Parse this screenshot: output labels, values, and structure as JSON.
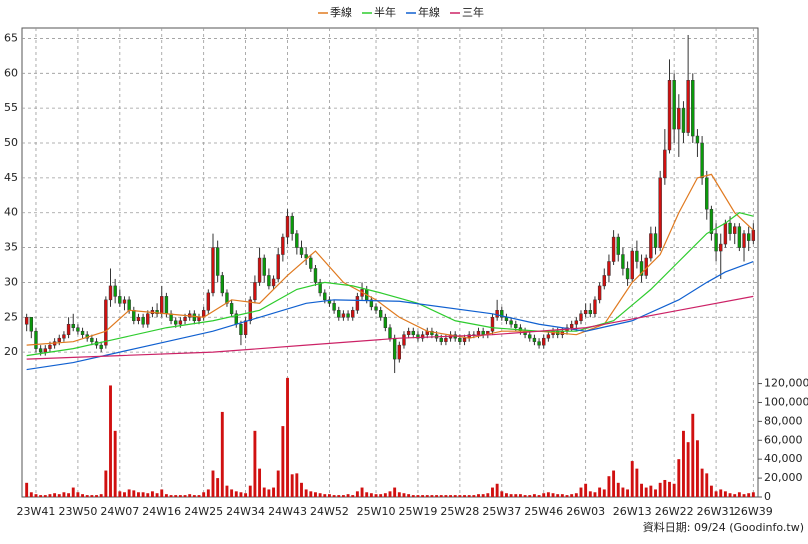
{
  "chart_data": {
    "type": "candlestick",
    "legend": "top",
    "up_color": "#d01010",
    "down_color": "#0a9a0a",
    "volume_color": "#d01010",
    "xlim": [
      -1,
      157
    ],
    "xticks": [
      {
        "value": 2,
        "label": "23W41"
      },
      {
        "value": 11,
        "label": "23W50"
      },
      {
        "value": 20,
        "label": "24W07"
      },
      {
        "value": 29,
        "label": "24W16"
      },
      {
        "value": 38,
        "label": "24W25"
      },
      {
        "value": 47,
        "label": "24W34"
      },
      {
        "value": 56,
        "label": "24W43"
      },
      {
        "value": 65,
        "label": "24W52"
      },
      {
        "value": 75,
        "label": "25W10"
      },
      {
        "value": 84,
        "label": "25W19"
      },
      {
        "value": 93,
        "label": "25W28"
      },
      {
        "value": 102,
        "label": "25W37"
      },
      {
        "value": 111,
        "label": "25W46"
      },
      {
        "value": 120,
        "label": "26W03"
      },
      {
        "value": 130,
        "label": "26W13"
      },
      {
        "value": 139,
        "label": "26W22"
      },
      {
        "value": 148,
        "label": "26W31"
      },
      {
        "value": 156,
        "label": "26W39"
      }
    ],
    "ylim": [
      16,
      66.5
    ],
    "yticks": [
      20,
      25,
      30,
      35,
      40,
      45,
      50,
      55,
      60,
      65
    ],
    "y2lim": [
      0,
      128000
    ],
    "y2ticks": [
      0,
      {
        "value": 20000,
        "label": "20,000"
      },
      {
        "value": 40000,
        "label": "40,000"
      },
      {
        "value": 60000,
        "label": "60,000"
      },
      {
        "value": 80000,
        "label": "80,000"
      },
      {
        "value": 100000,
        "label": "100,000"
      },
      {
        "value": 120000,
        "label": "120,000"
      }
    ],
    "grid": true,
    "footnote": "資料日期: 09/24 (Goodinfo.tw)",
    "candles": [
      [
        24,
        25.5,
        23,
        25
      ],
      [
        25,
        25,
        22,
        23
      ],
      [
        23,
        23.5,
        20,
        20.5
      ],
      [
        20.5,
        21,
        19.5,
        20
      ],
      [
        20,
        21,
        19.5,
        20.5
      ],
      [
        20.5,
        21.5,
        20,
        21
      ],
      [
        21,
        22,
        20.5,
        21.5
      ],
      [
        21.5,
        22.5,
        21,
        22
      ],
      [
        22,
        23,
        21.5,
        22.5
      ],
      [
        22.5,
        25,
        22,
        24
      ],
      [
        24,
        25.5,
        23,
        23.5
      ],
      [
        23.5,
        24,
        22.5,
        23
      ],
      [
        23,
        23.5,
        22,
        22.5
      ],
      [
        22.5,
        23,
        21.5,
        22
      ],
      [
        22,
        22.5,
        21,
        21.5
      ],
      [
        21.5,
        22,
        20.5,
        21
      ],
      [
        21,
        21.5,
        20,
        20.5
      ],
      [
        21,
        28,
        20.5,
        27.5
      ],
      [
        27.5,
        32,
        26.5,
        29.5
      ],
      [
        29.5,
        30.5,
        27,
        28
      ],
      [
        28,
        29,
        26.5,
        27
      ],
      [
        27,
        28,
        26,
        27.5
      ],
      [
        27.5,
        28,
        25.5,
        26
      ],
      [
        26,
        26.5,
        24,
        24.5
      ],
      [
        24.5,
        25.5,
        24,
        25
      ],
      [
        25,
        25.5,
        23.5,
        24
      ],
      [
        24,
        26,
        23.5,
        25.5
      ],
      [
        25.5,
        26.5,
        25,
        26
      ],
      [
        26,
        27,
        25,
        25.5
      ],
      [
        25.5,
        29.5,
        25,
        28
      ],
      [
        28,
        28.5,
        25,
        25.5
      ],
      [
        25.5,
        26,
        24,
        24.5
      ],
      [
        24.5,
        25,
        23.5,
        24
      ],
      [
        24,
        25,
        23.5,
        24.5
      ],
      [
        24.5,
        25.5,
        24,
        25
      ],
      [
        25,
        26,
        24.5,
        25.5
      ],
      [
        25.5,
        26,
        24,
        24.5
      ],
      [
        24.5,
        25.5,
        24,
        25
      ],
      [
        25,
        26.5,
        24.5,
        26
      ],
      [
        26,
        29,
        25.5,
        28.5
      ],
      [
        28.5,
        37,
        28,
        35
      ],
      [
        35,
        36,
        30,
        31
      ],
      [
        31,
        31.5,
        28,
        28.5
      ],
      [
        28.5,
        29,
        26.5,
        27
      ],
      [
        27,
        27.5,
        25,
        25.5
      ],
      [
        25.5,
        26,
        23.5,
        24
      ],
      [
        24,
        24.5,
        21,
        22.5
      ],
      [
        22.5,
        25,
        22,
        24.5
      ],
      [
        24.5,
        28,
        24,
        27.5
      ],
      [
        27.5,
        31,
        27,
        30
      ],
      [
        30,
        35,
        29.5,
        33.5
      ],
      [
        33.5,
        34,
        30,
        31
      ],
      [
        31,
        32,
        29,
        29.5
      ],
      [
        29.5,
        31,
        29,
        30.5
      ],
      [
        30.5,
        35,
        30,
        34
      ],
      [
        34,
        37,
        33,
        36.5
      ],
      [
        36.5,
        40.5,
        35.5,
        39.5
      ],
      [
        39.5,
        40,
        36,
        37
      ],
      [
        37,
        37.5,
        34,
        35
      ],
      [
        35,
        36,
        33.5,
        34
      ],
      [
        34,
        35,
        32.5,
        33.5
      ],
      [
        33.5,
        34,
        31.5,
        32
      ],
      [
        32,
        32.5,
        29.5,
        30
      ],
      [
        30,
        30.5,
        28,
        28.5
      ],
      [
        28.5,
        29,
        27,
        27.5
      ],
      [
        27.5,
        28,
        26.5,
        27
      ],
      [
        27,
        27.5,
        25.5,
        26
      ],
      [
        26,
        26.5,
        24.5,
        25
      ],
      [
        25,
        26,
        24.5,
        25.5
      ],
      [
        25.5,
        26,
        24.5,
        25
      ],
      [
        25,
        26.5,
        24.5,
        26
      ],
      [
        26,
        28.5,
        25.5,
        28
      ],
      [
        28,
        30,
        27.5,
        29
      ],
      [
        29,
        29.5,
        27,
        27.5
      ],
      [
        27.5,
        28,
        26,
        26.5
      ],
      [
        26.5,
        27,
        25.5,
        26
      ],
      [
        26,
        26.5,
        24.5,
        25
      ],
      [
        25,
        25.5,
        23,
        23.5
      ],
      [
        23.5,
        24,
        21.5,
        22
      ],
      [
        22,
        22.5,
        17,
        19
      ],
      [
        19,
        21.5,
        18.5,
        21
      ],
      [
        21,
        23,
        20.5,
        22.5
      ],
      [
        22.5,
        23.5,
        22,
        23
      ],
      [
        23,
        23.5,
        22,
        22.5
      ],
      [
        22.5,
        23,
        21.5,
        22
      ],
      [
        22,
        23,
        21.5,
        22.5
      ],
      [
        22.5,
        23.5,
        22,
        23
      ],
      [
        23,
        23.5,
        22,
        22.5
      ],
      [
        22.5,
        23,
        21.5,
        22
      ],
      [
        22,
        22.5,
        21,
        21.5
      ],
      [
        21.5,
        22.5,
        21,
        22
      ],
      [
        22,
        23,
        21.5,
        22.5
      ],
      [
        22.5,
        23,
        21.5,
        22
      ],
      [
        22,
        22.5,
        21,
        21.5
      ],
      [
        21.5,
        22.5,
        21,
        22
      ],
      [
        22,
        23,
        21.5,
        22.5
      ],
      [
        22.5,
        23,
        22,
        22.5
      ],
      [
        22.5,
        23.5,
        22,
        23
      ],
      [
        23,
        23.5,
        22,
        22.5
      ],
      [
        22.5,
        23,
        22,
        23
      ],
      [
        23,
        25.5,
        22.5,
        25
      ],
      [
        25,
        27.5,
        24.5,
        26
      ],
      [
        26,
        26.5,
        24.5,
        25
      ],
      [
        25,
        25.5,
        24,
        24.5
      ],
      [
        24.5,
        25,
        23.5,
        24
      ],
      [
        24,
        24.5,
        23,
        23.5
      ],
      [
        23.5,
        24,
        22.5,
        23
      ],
      [
        23,
        23.5,
        22,
        22.5
      ],
      [
        22.5,
        23,
        21.5,
        22
      ],
      [
        22,
        22.5,
        21,
        21.5
      ],
      [
        21.5,
        22,
        20.5,
        21
      ],
      [
        21,
        22.5,
        20.5,
        22
      ],
      [
        22,
        23,
        21.5,
        22.5
      ],
      [
        22.5,
        23.5,
        22,
        23
      ],
      [
        23,
        23.5,
        22,
        22.5
      ],
      [
        22.5,
        23.5,
        22,
        23
      ],
      [
        23,
        24,
        22.5,
        23.5
      ],
      [
        23.5,
        24.5,
        23,
        24
      ],
      [
        24,
        25,
        23,
        24.5
      ],
      [
        24.5,
        26,
        24,
        25.5
      ],
      [
        25.5,
        27,
        25,
        26
      ],
      [
        26,
        27,
        25,
        25.5
      ],
      [
        25.5,
        28,
        25,
        27.5
      ],
      [
        27.5,
        30,
        27,
        29.5
      ],
      [
        29.5,
        32,
        29,
        31
      ],
      [
        31,
        34,
        30,
        33
      ],
      [
        33,
        37.5,
        32.5,
        36.5
      ],
      [
        36.5,
        37,
        33,
        34
      ],
      [
        34,
        35,
        31,
        32
      ],
      [
        32,
        33,
        29.5,
        30.5
      ],
      [
        30.5,
        35,
        30,
        34.5
      ],
      [
        34.5,
        36,
        32,
        33
      ],
      [
        33,
        34,
        30,
        31
      ],
      [
        31,
        34,
        30.5,
        33.5
      ],
      [
        33.5,
        38,
        33,
        37
      ],
      [
        37,
        38,
        34,
        35
      ],
      [
        35,
        46,
        34.5,
        45
      ],
      [
        45,
        52,
        44,
        49
      ],
      [
        49,
        62,
        48.5,
        59
      ],
      [
        59,
        60,
        50,
        52
      ],
      [
        52,
        57,
        48,
        55
      ],
      [
        55,
        56,
        50,
        51.5
      ],
      [
        51.5,
        65.5,
        51,
        59
      ],
      [
        59,
        60,
        50,
        51
      ],
      [
        51,
        52,
        48,
        50
      ],
      [
        50,
        51,
        44,
        45
      ],
      [
        45,
        46,
        39,
        40.5
      ],
      [
        40.5,
        41,
        36,
        37
      ],
      [
        37,
        38.5,
        33,
        34.5
      ],
      [
        34.5,
        37,
        30.5,
        35.5
      ],
      [
        35.5,
        39,
        35,
        38.5
      ],
      [
        38.5,
        39.5,
        36,
        37
      ],
      [
        37,
        38.5,
        35.5,
        38
      ],
      [
        38,
        38.5,
        34.5,
        35
      ],
      [
        35,
        37.5,
        33,
        37
      ],
      [
        37,
        38,
        34.5,
        36
      ],
      [
        36,
        38.5,
        35.5,
        37.5
      ]
    ],
    "volume": [
      15000,
      5000,
      3000,
      2000,
      2000,
      3000,
      4000,
      3000,
      5000,
      4000,
      10000,
      5000,
      3000,
      2000,
      2000,
      2000,
      3000,
      28000,
      118000,
      70000,
      6000,
      5000,
      8000,
      7000,
      5000,
      5000,
      4000,
      6000,
      4000,
      8000,
      3000,
      2000,
      2000,
      2000,
      2000,
      3000,
      2000,
      2000,
      5000,
      8000,
      28000,
      20000,
      90000,
      12000,
      8000,
      6000,
      5000,
      4000,
      12000,
      70000,
      30000,
      10000,
      8000,
      10000,
      28000,
      75000,
      126000,
      24000,
      25000,
      15000,
      8000,
      6000,
      5000,
      4000,
      3000,
      3000,
      2000,
      2000,
      2000,
      3000,
      2000,
      6000,
      10000,
      5000,
      4000,
      3000,
      3000,
      4000,
      6000,
      10000,
      5000,
      4000,
      3000,
      2000,
      2000,
      2000,
      2000,
      2000,
      2000,
      2000,
      2000,
      2000,
      2000,
      2000,
      2000,
      2000,
      2000,
      3000,
      3000,
      4000,
      10000,
      14000,
      6000,
      4000,
      3000,
      3000,
      3000,
      2000,
      2000,
      3000,
      2000,
      4000,
      5000,
      4000,
      3000,
      3000,
      2000,
      3000,
      4000,
      10000,
      14000,
      6000,
      5000,
      10000,
      8000,
      22000,
      28000,
      15000,
      10000,
      8000,
      38000,
      30000,
      14000,
      10000,
      12000,
      8000,
      15000,
      18000,
      16000,
      14000,
      40000,
      70000,
      58000,
      88000,
      60000,
      30000,
      25000,
      12000,
      6000,
      8000,
      6000,
      4000,
      3000,
      5000,
      3000,
      4000,
      5000
    ],
    "series": [
      {
        "name": "季線",
        "color": "#e07a20",
        "x": [
          0,
          10,
          17,
          22,
          30,
          38,
          44,
          50,
          56,
          62,
          68,
          75,
          80,
          86,
          95,
          102,
          110,
          118,
          124,
          130,
          136,
          140,
          144,
          147,
          152,
          156
        ],
        "values": [
          21,
          21.5,
          23,
          26,
          25.5,
          25,
          27.5,
          27,
          31,
          34.5,
          30,
          27.5,
          25,
          23,
          22,
          23,
          23,
          22.5,
          24,
          30,
          34,
          40,
          45,
          45.5,
          40,
          37.5
        ]
      },
      {
        "name": "半年",
        "color": "#2ecc2e",
        "x": [
          0,
          10,
          20,
          30,
          40,
          50,
          58,
          64,
          70,
          76,
          84,
          92,
          100,
          110,
          118,
          126,
          134,
          140,
          146,
          150,
          153,
          156
        ],
        "values": [
          19.5,
          20.5,
          22,
          23.5,
          24.5,
          26,
          29,
          30,
          29.5,
          28.5,
          27,
          24.5,
          23.5,
          23,
          23,
          24.5,
          29,
          33,
          37,
          38.5,
          40,
          39.5
        ]
      },
      {
        "name": "年線",
        "color": "#1060d0",
        "x": [
          0,
          10,
          20,
          30,
          40,
          50,
          60,
          66,
          80,
          100,
          110,
          120,
          130,
          140,
          146,
          150,
          156
        ],
        "values": [
          17.5,
          18.5,
          20,
          21.5,
          23,
          25,
          27,
          27.5,
          27.3,
          25.5,
          24,
          23,
          24.5,
          27.5,
          30,
          31.5,
          33
        ]
      },
      {
        "name": "三年",
        "color": "#cc2266",
        "x": [
          0,
          20,
          40,
          60,
          80,
          100,
          120,
          140,
          156
        ],
        "values": [
          19,
          19.5,
          20,
          21,
          22,
          22.5,
          23.5,
          26,
          28
        ]
      }
    ]
  }
}
